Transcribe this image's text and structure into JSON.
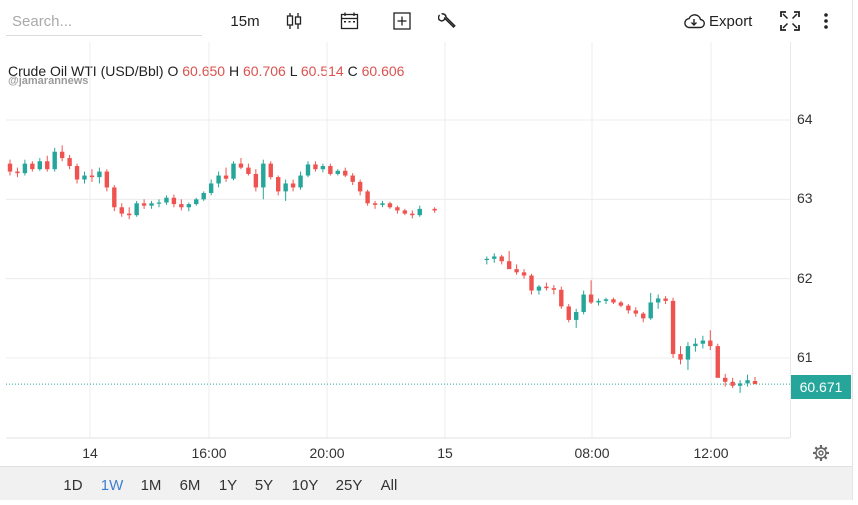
{
  "toolbar": {
    "search_placeholder": "Search...",
    "interval": "15m",
    "export_label": "Export"
  },
  "legend": {
    "symbol": "Crude Oil WTI (USD/Bbl)",
    "o_label": "O",
    "o_value": "60.650",
    "h_label": "H",
    "h_value": "60.706",
    "l_label": "L",
    "l_value": "60.514",
    "c_label": "C",
    "c_value": "60.606"
  },
  "watermark": "@jamarannews",
  "price_axis": [
    "64",
    "63",
    "62",
    "61"
  ],
  "time_axis": [
    "14",
    "16:00",
    "20:00",
    "15",
    "08:00",
    "12:00"
  ],
  "current_price": "60.671",
  "ranges": [
    {
      "label": "1D",
      "active": false
    },
    {
      "label": "1W",
      "active": true
    },
    {
      "label": "1M",
      "active": false
    },
    {
      "label": "6M",
      "active": false
    },
    {
      "label": "1Y",
      "active": false
    },
    {
      "label": "5Y",
      "active": false
    },
    {
      "label": "10Y",
      "active": false
    },
    {
      "label": "25Y",
      "active": false
    },
    {
      "label": "All",
      "active": false
    }
  ],
  "colors": {
    "up": "#26a69a",
    "down": "#ef5350",
    "active_range": "#3f7fd1"
  },
  "chart_data": {
    "type": "candlestick",
    "y_range": [
      60.1,
      64.6
    ],
    "y_ticks": [
      61,
      62,
      63,
      64
    ],
    "x_ticks": [
      "14",
      "16:00",
      "20:00",
      "15",
      "08:00",
      "12:00"
    ],
    "current_price": 60.671,
    "candles": [
      [
        63.45,
        63.5,
        63.3,
        63.35
      ],
      [
        63.35,
        63.4,
        63.28,
        63.33
      ],
      [
        63.33,
        63.5,
        63.3,
        63.45
      ],
      [
        63.45,
        63.48,
        63.35,
        63.38
      ],
      [
        63.38,
        63.52,
        63.36,
        63.48
      ],
      [
        63.48,
        63.55,
        63.35,
        63.38
      ],
      [
        63.38,
        63.65,
        63.35,
        63.6
      ],
      [
        63.6,
        63.68,
        63.48,
        63.52
      ],
      [
        63.52,
        63.56,
        63.38,
        63.42
      ],
      [
        63.42,
        63.45,
        63.2,
        63.25
      ],
      [
        63.25,
        63.35,
        63.2,
        63.3
      ],
      [
        63.3,
        63.38,
        63.22,
        63.28
      ],
      [
        63.28,
        63.4,
        63.2,
        63.35
      ],
      [
        63.35,
        63.38,
        63.1,
        63.15
      ],
      [
        63.15,
        63.18,
        62.85,
        62.9
      ],
      [
        62.9,
        62.95,
        62.78,
        62.82
      ],
      [
        62.82,
        62.9,
        62.75,
        62.8
      ],
      [
        62.8,
        62.98,
        62.78,
        62.95
      ],
      [
        62.95,
        63.0,
        62.88,
        62.92
      ],
      [
        62.92,
        62.98,
        62.88,
        62.95
      ],
      [
        62.95,
        63.0,
        62.9,
        62.96
      ],
      [
        62.96,
        63.05,
        62.93,
        63.02
      ],
      [
        63.02,
        63.06,
        62.9,
        62.94
      ],
      [
        62.94,
        63.0,
        62.86,
        62.9
      ],
      [
        62.9,
        62.96,
        62.85,
        62.94
      ],
      [
        62.94,
        63.02,
        62.92,
        63.0
      ],
      [
        63.0,
        63.1,
        62.98,
        63.08
      ],
      [
        63.08,
        63.25,
        63.05,
        63.2
      ],
      [
        63.2,
        63.35,
        63.15,
        63.3
      ],
      [
        63.3,
        63.4,
        63.22,
        63.26
      ],
      [
        63.26,
        63.48,
        63.24,
        63.45
      ],
      [
        63.45,
        63.52,
        63.38,
        63.4
      ],
      [
        63.4,
        63.45,
        63.3,
        63.32
      ],
      [
        63.32,
        63.38,
        63.1,
        63.15
      ],
      [
        63.15,
        63.5,
        63.0,
        63.45
      ],
      [
        63.45,
        63.48,
        63.25,
        63.28
      ],
      [
        63.28,
        63.3,
        63.05,
        63.1
      ],
      [
        63.1,
        63.25,
        62.98,
        63.2
      ],
      [
        63.2,
        63.25,
        63.1,
        63.15
      ],
      [
        63.15,
        63.35,
        63.12,
        63.3
      ],
      [
        63.3,
        63.48,
        63.28,
        63.44
      ],
      [
        63.44,
        63.48,
        63.35,
        63.38
      ],
      [
        63.38,
        63.45,
        63.34,
        63.42
      ],
      [
        63.42,
        63.45,
        63.3,
        63.32
      ],
      [
        63.32,
        63.38,
        63.3,
        63.36
      ],
      [
        63.36,
        63.4,
        63.28,
        63.3
      ],
      [
        63.3,
        63.33,
        63.18,
        63.22
      ],
      [
        63.22,
        63.25,
        63.05,
        63.1
      ],
      [
        63.1,
        63.12,
        62.92,
        62.95
      ],
      [
        62.95,
        62.98,
        62.88,
        62.93
      ],
      [
        62.93,
        62.98,
        62.9,
        62.95
      ],
      [
        62.95,
        62.97,
        62.88,
        62.9
      ],
      [
        62.9,
        62.92,
        62.82,
        62.86
      ],
      [
        62.86,
        62.88,
        62.8,
        62.82
      ],
      [
        62.82,
        62.86,
        62.76,
        62.8
      ],
      [
        62.8,
        62.92,
        62.78,
        62.88
      ],
      null,
      [
        62.88,
        62.9,
        62.83,
        62.86
      ],
      null,
      null,
      null,
      null,
      null,
      null,
      [
        62.25,
        62.28,
        62.18,
        62.25
      ],
      [
        62.25,
        62.32,
        62.2,
        62.28
      ],
      [
        62.28,
        62.3,
        62.18,
        62.22
      ],
      [
        62.22,
        62.35,
        62.15,
        62.12
      ],
      [
        62.12,
        62.18,
        62.05,
        62.08
      ],
      [
        62.08,
        62.12,
        62.0,
        62.04
      ],
      [
        62.04,
        62.06,
        61.8,
        61.85
      ],
      [
        61.85,
        61.92,
        61.8,
        61.9
      ],
      [
        61.9,
        61.95,
        61.85,
        61.88
      ],
      [
        61.88,
        61.92,
        61.8,
        61.86
      ],
      [
        61.86,
        61.9,
        61.62,
        61.65
      ],
      [
        61.65,
        61.68,
        61.45,
        61.48
      ],
      [
        61.48,
        61.62,
        61.38,
        61.58
      ],
      [
        61.58,
        61.85,
        61.55,
        61.8
      ],
      [
        61.8,
        61.98,
        61.68,
        61.7
      ],
      [
        61.7,
        61.75,
        61.66,
        61.72
      ],
      [
        61.72,
        61.76,
        61.68,
        61.74
      ],
      [
        61.74,
        61.76,
        61.68,
        61.7
      ],
      [
        61.7,
        61.72,
        61.64,
        61.66
      ],
      [
        61.66,
        61.68,
        61.56,
        61.6
      ],
      [
        61.6,
        61.64,
        61.52,
        61.56
      ],
      [
        61.56,
        61.58,
        61.45,
        61.5
      ],
      [
        61.5,
        61.82,
        61.48,
        61.7
      ],
      [
        61.7,
        61.8,
        61.62,
        61.75
      ],
      [
        61.75,
        61.78,
        61.68,
        61.72
      ],
      [
        61.72,
        61.76,
        61.0,
        61.05
      ],
      [
        61.05,
        61.15,
        60.92,
        60.98
      ],
      [
        60.98,
        61.2,
        60.85,
        61.15
      ],
      [
        61.15,
        61.25,
        61.08,
        61.18
      ],
      [
        61.18,
        61.28,
        61.12,
        61.22
      ],
      [
        61.22,
        61.35,
        61.1,
        61.15
      ],
      [
        61.15,
        61.18,
        60.8,
        60.75
      ],
      [
        60.75,
        60.8,
        60.64,
        60.7
      ],
      [
        60.7,
        60.75,
        60.62,
        60.65
      ],
      [
        60.65,
        60.72,
        60.56,
        60.68
      ],
      [
        60.68,
        60.79,
        60.64,
        60.72
      ],
      [
        60.71,
        60.76,
        60.67,
        60.671
      ]
    ]
  }
}
